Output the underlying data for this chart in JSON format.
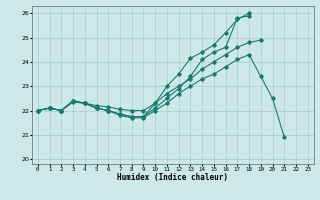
{
  "xlabel": "Humidex (Indice chaleur)",
  "bg_color": "#cce8e8",
  "grid_color": "#aacccc",
  "line_color": "#1a7a6e",
  "xlim": [
    -0.5,
    23.5
  ],
  "ylim": [
    19.8,
    26.3
  ],
  "yticks": [
    20,
    21,
    22,
    23,
    24,
    25,
    26
  ],
  "xticks": [
    0,
    1,
    2,
    3,
    4,
    5,
    6,
    7,
    8,
    9,
    10,
    11,
    12,
    13,
    14,
    15,
    16,
    17,
    18,
    19,
    20,
    21,
    22,
    23
  ],
  "series": [
    {
      "x": [
        0,
        1,
        2,
        3,
        4,
        5,
        6,
        7,
        8,
        9,
        10,
        11,
        12,
        13,
        14,
        15,
        16,
        17,
        18,
        19,
        20,
        21
      ],
      "y": [
        22.0,
        22.1,
        22.0,
        22.4,
        22.3,
        22.1,
        22.0,
        21.8,
        21.7,
        21.7,
        22.0,
        22.3,
        22.7,
        23.0,
        23.3,
        23.5,
        23.8,
        24.1,
        24.3,
        23.4,
        22.5,
        20.9
      ]
    },
    {
      "x": [
        0,
        1,
        2,
        3,
        4,
        5,
        6,
        7,
        8,
        9,
        10,
        11,
        12,
        13,
        14,
        15,
        16,
        17,
        18,
        19
      ],
      "y": [
        22.0,
        22.1,
        22.0,
        22.35,
        22.3,
        22.2,
        22.15,
        22.05,
        22.0,
        22.0,
        22.3,
        22.7,
        23.0,
        23.3,
        23.7,
        24.0,
        24.3,
        24.6,
        24.8,
        24.9
      ]
    },
    {
      "x": [
        0,
        1,
        2,
        3,
        4,
        5,
        6,
        7,
        8,
        9,
        10,
        11,
        12,
        13,
        14,
        15,
        16,
        17,
        18
      ],
      "y": [
        22.0,
        22.1,
        22.0,
        22.4,
        22.3,
        22.1,
        22.0,
        21.85,
        21.75,
        21.75,
        22.1,
        22.5,
        22.9,
        23.4,
        24.1,
        24.4,
        24.6,
        25.8,
        25.9
      ]
    },
    {
      "x": [
        0,
        1,
        2,
        3,
        4,
        5,
        6,
        7,
        8,
        9,
        10,
        11,
        12,
        13,
        14,
        15,
        16,
        17,
        18
      ],
      "y": [
        22.0,
        22.1,
        22.0,
        22.4,
        22.3,
        22.1,
        22.0,
        21.85,
        21.75,
        21.75,
        22.3,
        23.0,
        23.5,
        24.15,
        24.4,
        24.7,
        25.2,
        25.75,
        26.0
      ]
    }
  ]
}
